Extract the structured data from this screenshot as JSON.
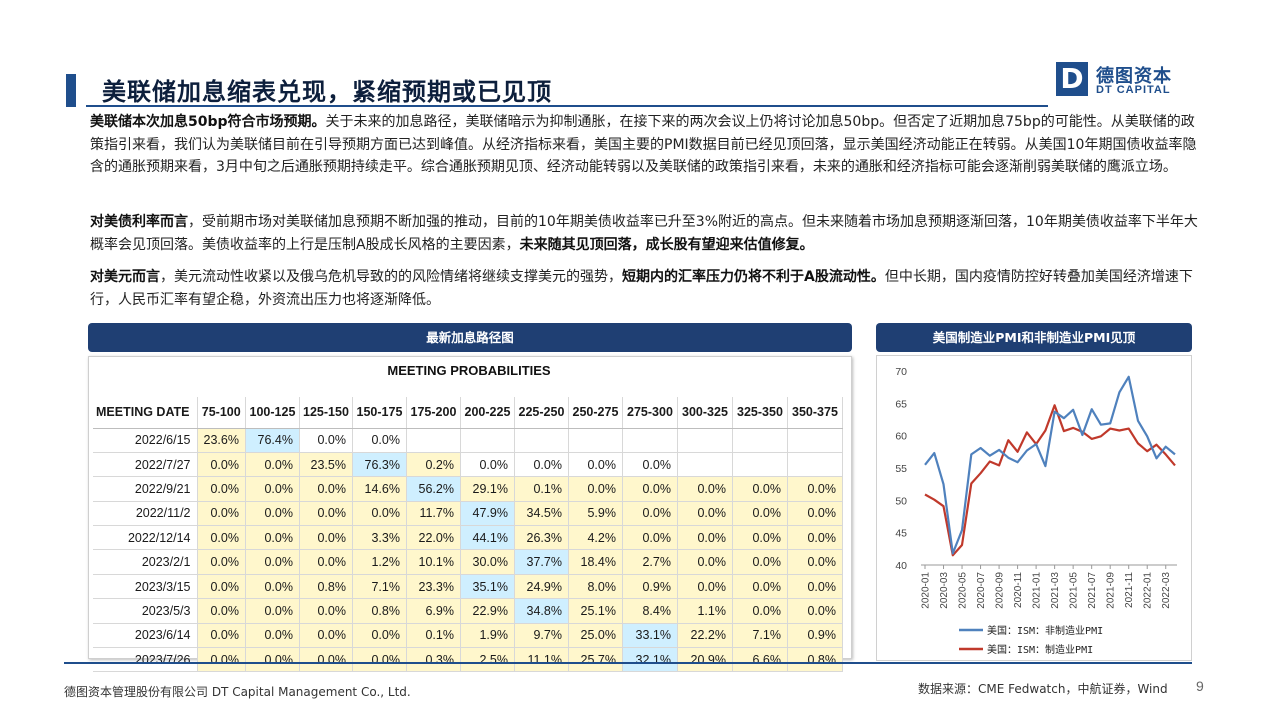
{
  "title": "美联储加息缩表兑现，紧缩预期或已见顶",
  "logo": {
    "mark": "D",
    "cn": "德图资本",
    "en": "DT CAPITAL"
  },
  "paragraphs": {
    "p1_bold": "美联储本次加息50bp符合市场预期。",
    "p1_rest": "关于未来的加息路径，美联储暗示为抑制通胀，在接下来的两次会议上仍将讨论加息50bp。但否定了近期加息75bp的可能性。从美联储的政策指引来看，我们认为美联储目前在引导预期方面已达到峰值。从经济指标来看，美国主要的PMI数据目前已经见顶回落，显示美国经济动能正在转弱。从美国10年期国债收益率隐含的通胀预期来看，3月中旬之后通胀预期持续走平。综合通胀预期见顶、经济动能转弱以及美联储的政策指引来看，未来的通胀和经济指标可能会逐渐削弱美联储的鹰派立场。",
    "p2_bold": "对美债利率而言",
    "p2_mid": "，受前期市场对美联储加息预期不断加强的推动，目前的10年期美债收益率已升至3%附近的高点。但未来随着市场加息预期逐渐回落，10年期美债收益率下半年大概率会见顶回落。美债收益率的上行是压制A股成长风格的主要因素，",
    "p2_bold2": "未来随其见顶回落，成长股有望迎来估值修复。",
    "p3_bold": "对美元而言",
    "p3_mid": "，美元流动性收紧以及俄乌危机导致的的风险情绪将继续支撑美元的强势，",
    "p3_bold2": "短期内的汇率压力仍将不利于A股流动性。",
    "p3_rest": "但中长期，国内疫情防控好转叠加美国经济增速下行，人民币汇率有望企稳，外资流出压力也将逐渐降低。"
  },
  "left_panel": {
    "header": "最新加息路径图",
    "table_title": "MEETING PROBABILITIES",
    "columns": [
      "MEETING DATE",
      "75-100",
      "100-125",
      "125-150",
      "150-175",
      "175-200",
      "200-225",
      "225-250",
      "250-275",
      "275-300",
      "300-325",
      "325-350",
      "350-375"
    ],
    "rows": [
      {
        "date": "2022/6/15",
        "cells": [
          "23.6%",
          "76.4%",
          "0.0%",
          "0.0%",
          "",
          "",
          "",
          "",
          "",
          "",
          "",
          ""
        ]
      },
      {
        "date": "2022/7/27",
        "cells": [
          "0.0%",
          "0.0%",
          "23.5%",
          "76.3%",
          "0.2%",
          "0.0%",
          "0.0%",
          "0.0%",
          "0.0%",
          "",
          "",
          ""
        ]
      },
      {
        "date": "2022/9/21",
        "cells": [
          "0.0%",
          "0.0%",
          "0.0%",
          "14.6%",
          "56.2%",
          "29.1%",
          "0.1%",
          "0.0%",
          "0.0%",
          "0.0%",
          "0.0%",
          "0.0%"
        ]
      },
      {
        "date": "2022/11/2",
        "cells": [
          "0.0%",
          "0.0%",
          "0.0%",
          "0.0%",
          "11.7%",
          "47.9%",
          "34.5%",
          "5.9%",
          "0.0%",
          "0.0%",
          "0.0%",
          "0.0%"
        ]
      },
      {
        "date": "2022/12/14",
        "cells": [
          "0.0%",
          "0.0%",
          "0.0%",
          "3.3%",
          "22.0%",
          "44.1%",
          "26.3%",
          "4.2%",
          "0.0%",
          "0.0%",
          "0.0%",
          "0.0%"
        ]
      },
      {
        "date": "2023/2/1",
        "cells": [
          "0.0%",
          "0.0%",
          "0.0%",
          "1.2%",
          "10.1%",
          "30.0%",
          "37.7%",
          "18.4%",
          "2.7%",
          "0.0%",
          "0.0%",
          "0.0%"
        ]
      },
      {
        "date": "2023/3/15",
        "cells": [
          "0.0%",
          "0.0%",
          "0.8%",
          "7.1%",
          "23.3%",
          "35.1%",
          "24.9%",
          "8.0%",
          "0.9%",
          "0.0%",
          "0.0%",
          "0.0%"
        ]
      },
      {
        "date": "2023/5/3",
        "cells": [
          "0.0%",
          "0.0%",
          "0.0%",
          "0.8%",
          "6.9%",
          "22.9%",
          "34.8%",
          "25.1%",
          "8.4%",
          "1.1%",
          "0.0%",
          "0.0%"
        ]
      },
      {
        "date": "2023/6/14",
        "cells": [
          "0.0%",
          "0.0%",
          "0.0%",
          "0.0%",
          "0.1%",
          "1.9%",
          "9.7%",
          "25.0%",
          "33.1%",
          "22.2%",
          "7.1%",
          "0.9%"
        ]
      },
      {
        "date": "2023/7/26",
        "cells": [
          "0.0%",
          "0.0%",
          "0.0%",
          "0.0%",
          "0.3%",
          "2.5%",
          "11.1%",
          "25.7%",
          "32.1%",
          "20.9%",
          "6.6%",
          "0.8%"
        ]
      }
    ],
    "highlight": [
      [
        "y",
        "b",
        "",
        "",
        "",
        "",
        "",
        "",
        "",
        "",
        "",
        ""
      ],
      [
        "y",
        "y",
        "y",
        "b",
        "y",
        "",
        "",
        "",
        "",
        "",
        "",
        ""
      ],
      [
        "y",
        "y",
        "y",
        "y",
        "b",
        "y",
        "y",
        "y",
        "y",
        "y",
        "y",
        "y"
      ],
      [
        "y",
        "y",
        "y",
        "y",
        "y",
        "b",
        "y",
        "y",
        "y",
        "y",
        "y",
        "y"
      ],
      [
        "y",
        "y",
        "y",
        "y",
        "y",
        "b",
        "y",
        "y",
        "y",
        "y",
        "y",
        "y"
      ],
      [
        "y",
        "y",
        "y",
        "y",
        "y",
        "y",
        "b",
        "y",
        "y",
        "y",
        "y",
        "y"
      ],
      [
        "y",
        "y",
        "y",
        "y",
        "y",
        "b",
        "y",
        "y",
        "y",
        "y",
        "y",
        "y"
      ],
      [
        "y",
        "y",
        "y",
        "y",
        "y",
        "y",
        "b",
        "y",
        "y",
        "y",
        "y",
        "y"
      ],
      [
        "y",
        "y",
        "y",
        "y",
        "y",
        "y",
        "y",
        "y",
        "b",
        "y",
        "y",
        "y"
      ],
      [
        "y",
        "y",
        "y",
        "y",
        "y",
        "y",
        "y",
        "y",
        "b",
        "y",
        "y",
        "y"
      ]
    ]
  },
  "right_panel": {
    "header": "美国制造业PMI和非制造业PMI见顶"
  },
  "chart_data": {
    "type": "line",
    "title": "",
    "x": [
      "2020-01",
      "2020-02",
      "2020-03",
      "2020-04",
      "2020-05",
      "2020-06",
      "2020-07",
      "2020-08",
      "2020-09",
      "2020-10",
      "2020-11",
      "2020-12",
      "2021-01",
      "2021-02",
      "2021-03",
      "2021-04",
      "2021-05",
      "2021-06",
      "2021-07",
      "2021-08",
      "2021-09",
      "2021-10",
      "2021-11",
      "2021-12",
      "2022-01",
      "2022-02",
      "2022-03",
      "2022-04"
    ],
    "xticks": [
      "2020-01",
      "2020-03",
      "2020-05",
      "2020-07",
      "2020-09",
      "2020-11",
      "2021-01",
      "2021-03",
      "2021-05",
      "2021-07",
      "2021-09",
      "2021-11",
      "2022-01",
      "2022-03"
    ],
    "ylim": [
      40,
      70
    ],
    "yticks": [
      40,
      45,
      50,
      55,
      60,
      65,
      70
    ],
    "grid": false,
    "legend_position": "bottom",
    "series": [
      {
        "name": "美国：ISM：非制造业PMI",
        "color": "#4f81bd",
        "values": [
          55.5,
          57.3,
          52.5,
          41.8,
          45.4,
          57.1,
          58.1,
          56.9,
          57.8,
          56.6,
          55.9,
          57.7,
          58.7,
          55.3,
          63.7,
          62.7,
          64.0,
          60.1,
          64.1,
          61.7,
          61.9,
          66.7,
          69.1,
          62.3,
          59.9,
          56.5,
          58.3,
          57.1
        ]
      },
      {
        "name": "美国：ISM：制造业PMI",
        "color": "#c0392b",
        "values": [
          50.9,
          50.1,
          49.1,
          41.5,
          43.1,
          52.6,
          54.2,
          56.0,
          55.4,
          59.3,
          57.5,
          60.5,
          58.7,
          60.8,
          64.7,
          60.7,
          61.2,
          60.6,
          59.5,
          59.9,
          61.1,
          60.8,
          61.1,
          58.8,
          57.6,
          58.6,
          57.1,
          55.4
        ]
      }
    ]
  },
  "footer": {
    "company": "德图资本管理股份有限公司 DT Capital Management Co., Ltd.",
    "source": "数据来源：CME Fedwatch，中航证券，Wind",
    "page": "9"
  }
}
